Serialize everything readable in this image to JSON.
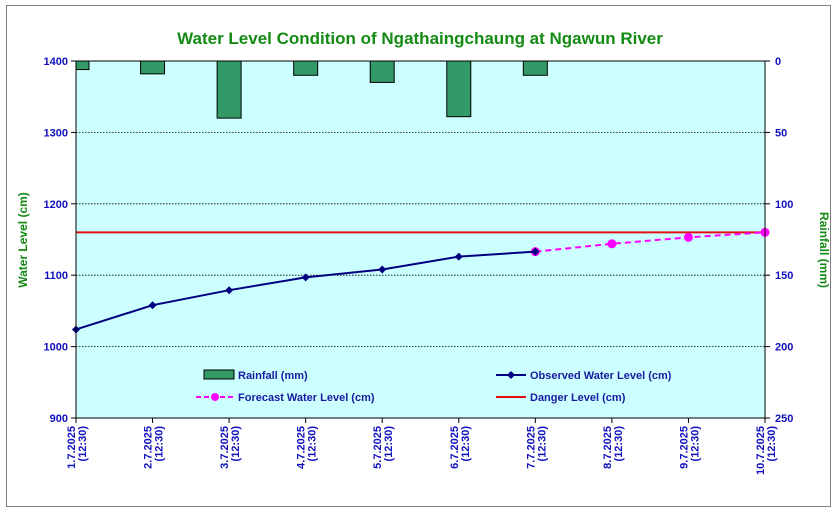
{
  "chart_data": {
    "type": "line",
    "title": "Water Level Condition of  Ngathaingchaung at Ngawun River",
    "ylabel": "Water Level (cm)",
    "y2label": "Rainfall (mm)",
    "categories": [
      "1.7.2025\n(12:30)",
      "2.7.2025\n(12:30)",
      "3.7.2025\n(12:30)",
      "4.7.2025\n(12:30)",
      "5.7.2025\n(12:30)",
      "6.7.2025\n(12:30)",
      "7.7.2025\n(12:30)",
      "8.7.2025\n(12:30)",
      "9.7.2025\n(12:30)",
      "10.7.2025\n(12:30)"
    ],
    "ylim": [
      900,
      1400
    ],
    "yticks": [
      900,
      1000,
      1100,
      1200,
      1300,
      1400
    ],
    "y2lim": [
      0,
      250
    ],
    "y2ticks": [
      0,
      50,
      100,
      150,
      200,
      250
    ],
    "y2_inverted": true,
    "grid": true,
    "legend_position": "bottom-inside",
    "series": [
      {
        "name": "Rainfall (mm)",
        "kind": "bar",
        "axis": "right",
        "color": "#339966",
        "values": [
          6,
          9,
          40,
          10,
          15,
          39,
          10,
          null,
          null,
          null
        ]
      },
      {
        "name": "Observed Water Level (cm)",
        "kind": "line",
        "axis": "left",
        "color": "#000080",
        "values": [
          1024,
          1058,
          1079,
          1097,
          1108,
          1126,
          1133,
          null,
          null,
          null
        ]
      },
      {
        "name": "Forecast Water Level (cm)",
        "kind": "dashed-line",
        "axis": "left",
        "color": "#ff00ff",
        "values": [
          null,
          null,
          null,
          null,
          null,
          null,
          1133,
          1144,
          1153,
          1160
        ]
      },
      {
        "name": "Danger Level (cm)",
        "kind": "hline",
        "axis": "left",
        "color": "#e01010",
        "value": 1160
      }
    ],
    "colors": {
      "plot_bg": "#ccffff",
      "axis_text": "#1010c0",
      "title": "#138a13",
      "grid": "#000000"
    }
  }
}
